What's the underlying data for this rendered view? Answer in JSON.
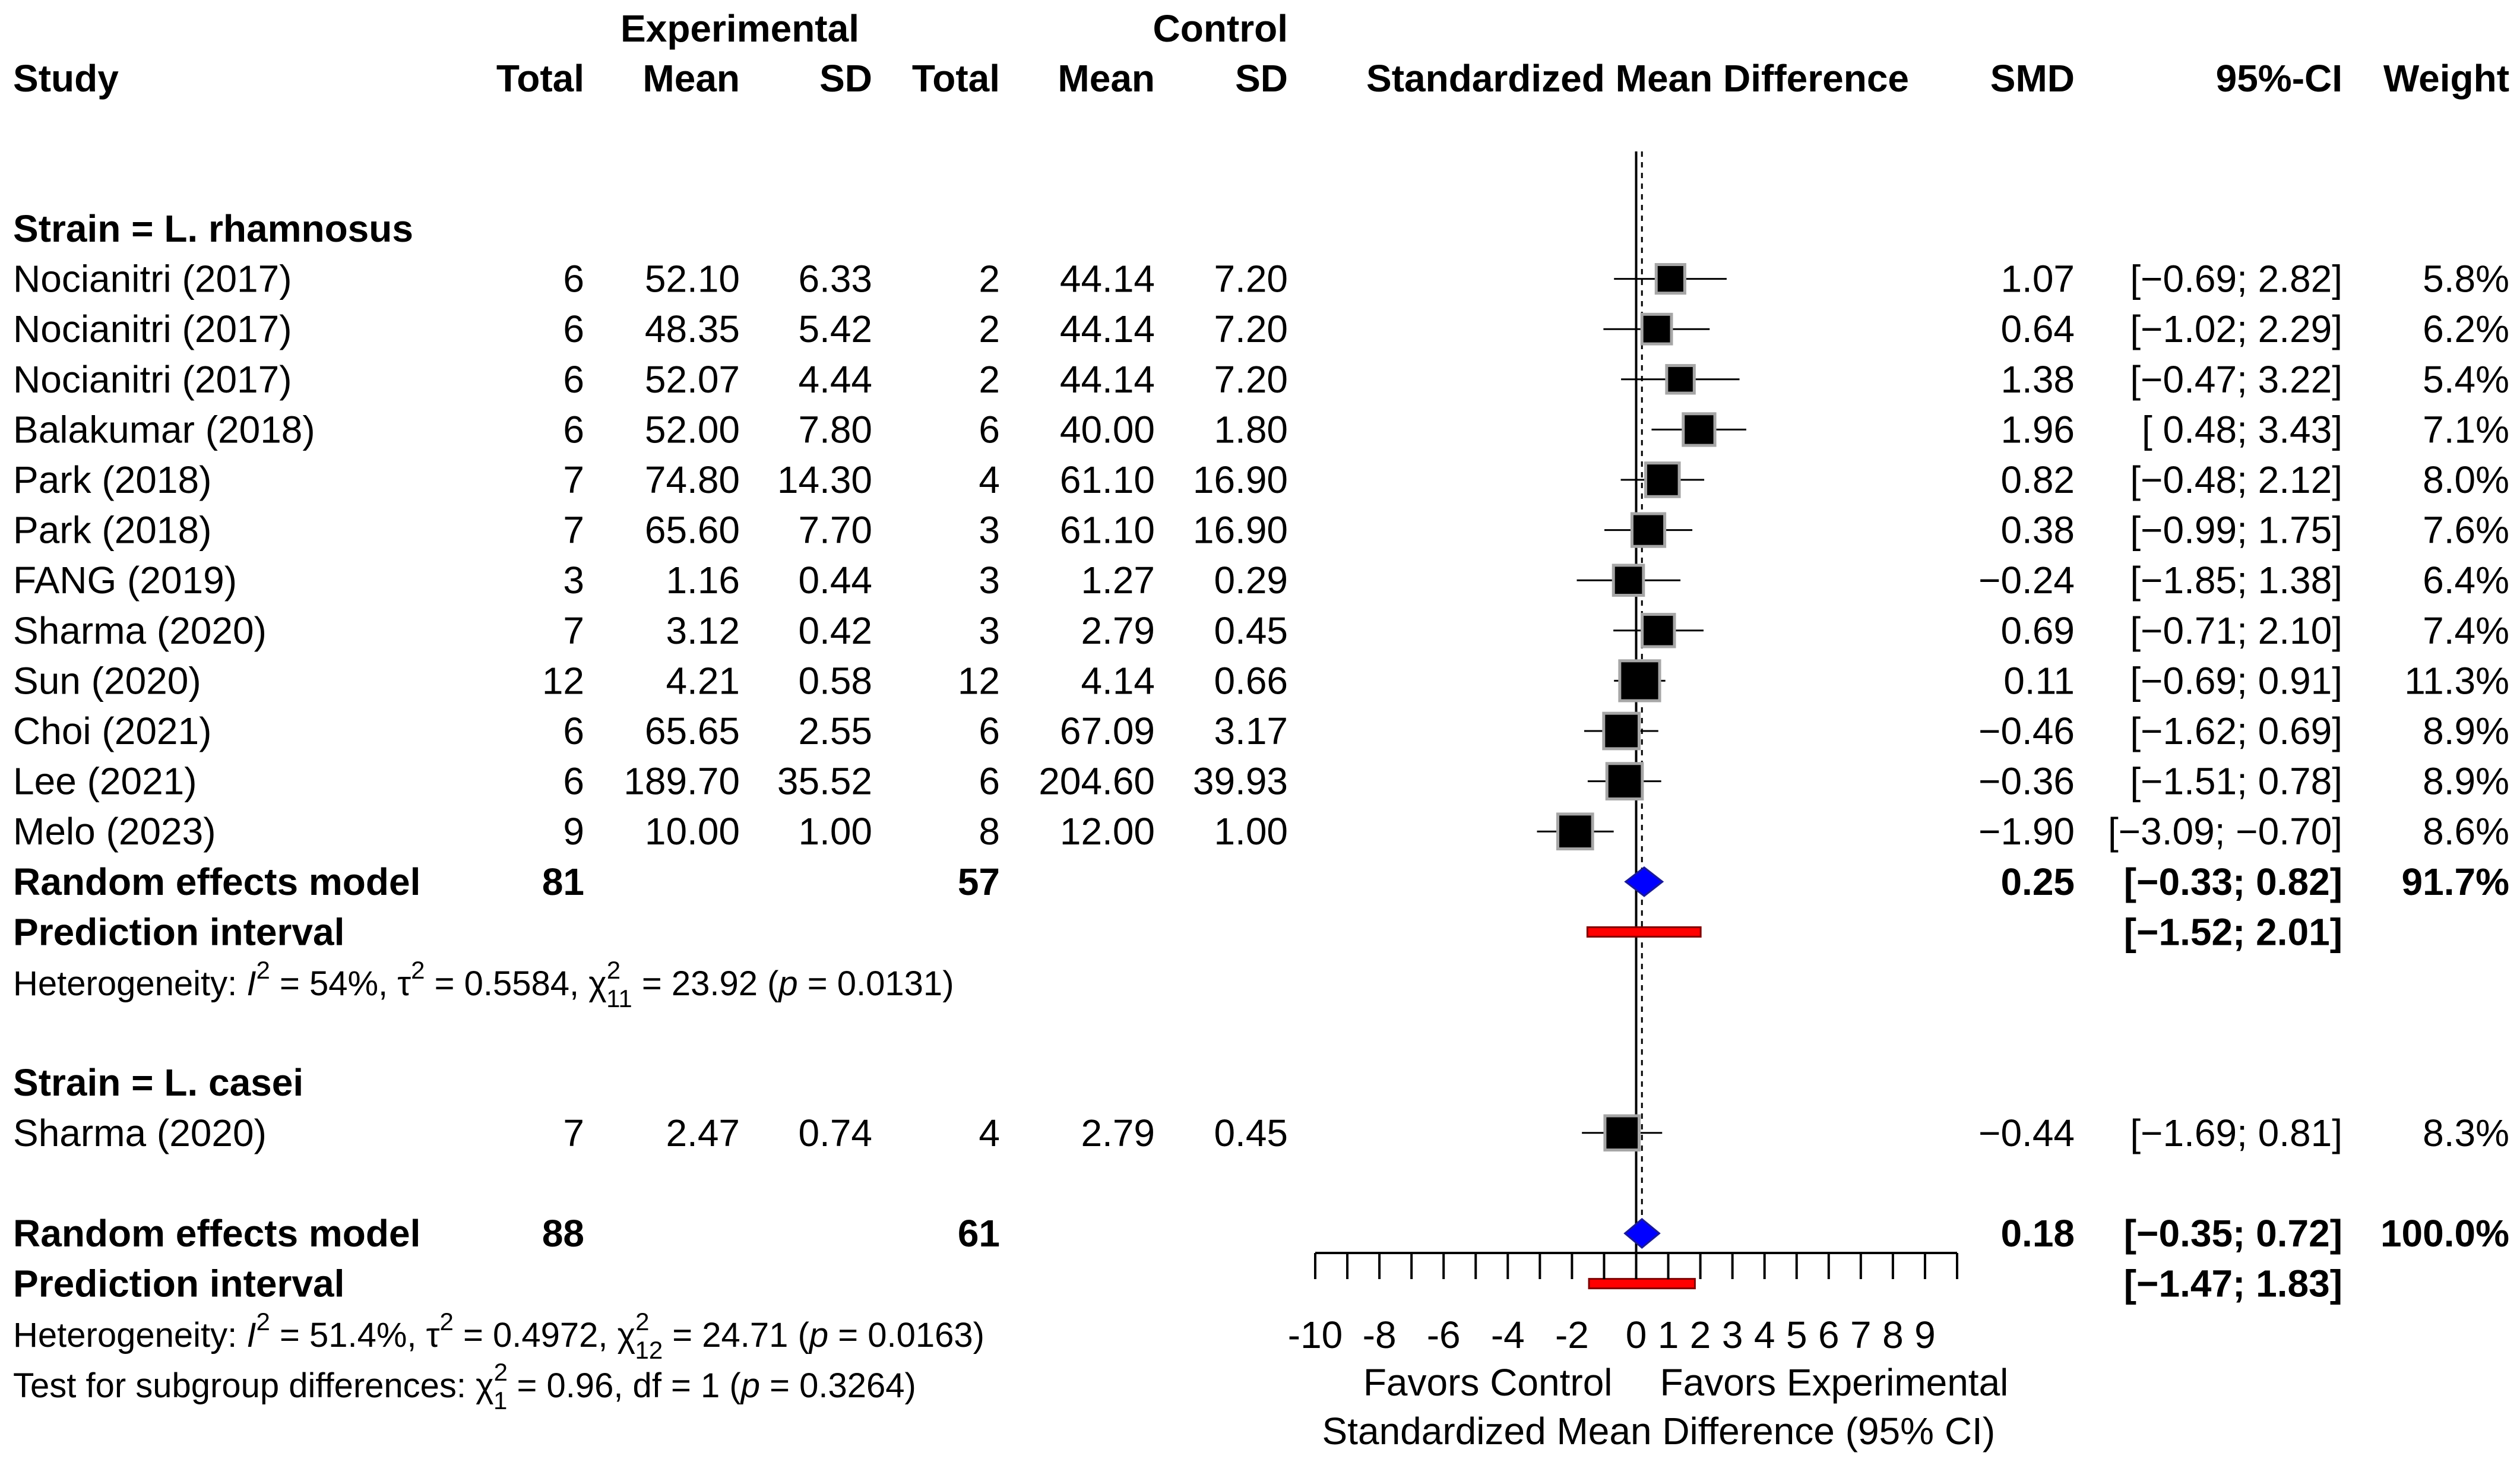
{
  "chart_data": {
    "type": "forest",
    "title": "",
    "columns": {
      "experimental_group": "Experimental",
      "control_group": "Control",
      "study": "Study",
      "total": "Total",
      "mean": "Mean",
      "sd": "SD",
      "plot_header": "Standardized Mean Difference",
      "smd": "SMD",
      "ci": "95%-CI",
      "weight": "Weight"
    },
    "subgroups": [
      {
        "label": "Strain = L. rhamnosus",
        "studies": [
          {
            "study": "Nocianitri (2017)",
            "e_total": "6",
            "e_mean": "52.10",
            "e_sd": "6.33",
            "c_total": "2",
            "c_mean": "44.14",
            "c_sd": "7.20",
            "smd": 1.07,
            "lower": -0.69,
            "upper": 2.82,
            "smd_text": "1.07",
            "ci_text": "[−0.69; 2.82]",
            "weight": 5.8,
            "weight_text": "5.8%"
          },
          {
            "study": "Nocianitri (2017)",
            "e_total": "6",
            "e_mean": "48.35",
            "e_sd": "5.42",
            "c_total": "2",
            "c_mean": "44.14",
            "c_sd": "7.20",
            "smd": 0.64,
            "lower": -1.02,
            "upper": 2.29,
            "smd_text": "0.64",
            "ci_text": "[−1.02; 2.29]",
            "weight": 6.2,
            "weight_text": "6.2%"
          },
          {
            "study": "Nocianitri (2017)",
            "e_total": "6",
            "e_mean": "52.07",
            "e_sd": "4.44",
            "c_total": "2",
            "c_mean": "44.14",
            "c_sd": "7.20",
            "smd": 1.38,
            "lower": -0.47,
            "upper": 3.22,
            "smd_text": "1.38",
            "ci_text": "[−0.47; 3.22]",
            "weight": 5.4,
            "weight_text": "5.4%"
          },
          {
            "study": "Balakumar (2018)",
            "e_total": "6",
            "e_mean": "52.00",
            "e_sd": "7.80",
            "c_total": "6",
            "c_mean": "40.00",
            "c_sd": "1.80",
            "smd": 1.96,
            "lower": 0.48,
            "upper": 3.43,
            "smd_text": "1.96",
            "ci_text": "[ 0.48; 3.43]",
            "weight": 7.1,
            "weight_text": "7.1%"
          },
          {
            "study": "Park (2018)",
            "e_total": "7",
            "e_mean": "74.80",
            "e_sd": "14.30",
            "c_total": "4",
            "c_mean": "61.10",
            "c_sd": "16.90",
            "smd": 0.82,
            "lower": -0.48,
            "upper": 2.12,
            "smd_text": "0.82",
            "ci_text": "[−0.48; 2.12]",
            "weight": 8.0,
            "weight_text": "8.0%"
          },
          {
            "study": "Park (2018)",
            "e_total": "7",
            "e_mean": "65.60",
            "e_sd": "7.70",
            "c_total": "3",
            "c_mean": "61.10",
            "c_sd": "16.90",
            "smd": 0.38,
            "lower": -0.99,
            "upper": 1.75,
            "smd_text": "0.38",
            "ci_text": "[−0.99; 1.75]",
            "weight": 7.6,
            "weight_text": "7.6%"
          },
          {
            "study": "FANG (2019)",
            "e_total": "3",
            "e_mean": "1.16",
            "e_sd": "0.44",
            "c_total": "3",
            "c_mean": "1.27",
            "c_sd": "0.29",
            "smd": -0.24,
            "lower": -1.85,
            "upper": 1.38,
            "smd_text": "−0.24",
            "ci_text": "[−1.85; 1.38]",
            "weight": 6.4,
            "weight_text": "6.4%"
          },
          {
            "study": "Sharma (2020)",
            "e_total": "7",
            "e_mean": "3.12",
            "e_sd": "0.42",
            "c_total": "3",
            "c_mean": "2.79",
            "c_sd": "0.45",
            "smd": 0.69,
            "lower": -0.71,
            "upper": 2.1,
            "smd_text": "0.69",
            "ci_text": "[−0.71; 2.10]",
            "weight": 7.4,
            "weight_text": "7.4%"
          },
          {
            "study": "Sun (2020)",
            "e_total": "12",
            "e_mean": "4.21",
            "e_sd": "0.58",
            "c_total": "12",
            "c_mean": "4.14",
            "c_sd": "0.66",
            "smd": 0.11,
            "lower": -0.69,
            "upper": 0.91,
            "smd_text": "0.11",
            "ci_text": "[−0.69; 0.91]",
            "weight": 11.3,
            "weight_text": "11.3%"
          },
          {
            "study": "Choi (2021)",
            "e_total": "6",
            "e_mean": "65.65",
            "e_sd": "2.55",
            "c_total": "6",
            "c_mean": "67.09",
            "c_sd": "3.17",
            "smd": -0.46,
            "lower": -1.62,
            "upper": 0.69,
            "smd_text": "−0.46",
            "ci_text": "[−1.62; 0.69]",
            "weight": 8.9,
            "weight_text": "8.9%"
          },
          {
            "study": "Lee (2021)",
            "e_total": "6",
            "e_mean": "189.70",
            "e_sd": "35.52",
            "c_total": "6",
            "c_mean": "204.60",
            "c_sd": "39.93",
            "smd": -0.36,
            "lower": -1.51,
            "upper": 0.78,
            "smd_text": "−0.36",
            "ci_text": "[−1.51; 0.78]",
            "weight": 8.9,
            "weight_text": "8.9%"
          },
          {
            "study": "Melo (2023)",
            "e_total": "9",
            "e_mean": "10.00",
            "e_sd": "1.00",
            "c_total": "8",
            "c_mean": "12.00",
            "c_sd": "1.00",
            "smd": -1.9,
            "lower": -3.09,
            "upper": -0.7,
            "smd_text": "−1.90",
            "ci_text": "[−3.09; −0.70]",
            "weight": 8.6,
            "weight_text": "8.6%"
          }
        ],
        "model": {
          "label": "Random effects model",
          "e_total": "81",
          "c_total": "57",
          "smd": 0.25,
          "lower": -0.33,
          "upper": 0.82,
          "smd_text": "0.25",
          "ci_text": "[−0.33; 0.82]",
          "weight_text": "91.7%"
        },
        "prediction": {
          "label": "Prediction interval",
          "lower": -1.52,
          "upper": 2.01,
          "ci_text": "[−1.52; 2.01]"
        },
        "heterogeneity": {
          "lead": "Heterogeneity: ",
          "i2": "54%",
          "tau2": "0.5584",
          "chi_df": "11",
          "chi": "23.92",
          "p": "0.0131"
        }
      },
      {
        "label": "Strain = L. casei",
        "studies": [
          {
            "study": "Sharma (2020)",
            "e_total": "7",
            "e_mean": "2.47",
            "e_sd": "0.74",
            "c_total": "4",
            "c_mean": "2.79",
            "c_sd": "0.45",
            "smd": -0.44,
            "lower": -1.69,
            "upper": 0.81,
            "smd_text": "−0.44",
            "ci_text": "[−1.69; 0.81]",
            "weight": 8.3,
            "weight_text": "8.3%"
          }
        ]
      }
    ],
    "overall": {
      "model": {
        "label": "Random effects model",
        "e_total": "88",
        "c_total": "61",
        "smd": 0.18,
        "lower": -0.35,
        "upper": 0.72,
        "smd_text": "0.18",
        "ci_text": "[−0.35; 0.72]",
        "weight_text": "100.0%"
      },
      "prediction": {
        "label": "Prediction interval",
        "lower": -1.47,
        "upper": 1.83,
        "ci_text": "[−1.47; 1.83]"
      },
      "heterogeneity": {
        "lead": "Heterogeneity: ",
        "i2": "51.4%",
        "tau2": "0.4972",
        "chi_df": "12",
        "chi": "24.71",
        "p": "0.0163"
      },
      "subgroup_test": {
        "lead": "Test for subgroup differences: ",
        "chi_df": "1",
        "chi": "0.96",
        "df": "1",
        "p": "0.3264"
      }
    },
    "axis": {
      "xlim": [
        -10,
        10
      ],
      "ticks": [
        -10,
        -9,
        -8,
        -7,
        -6,
        -5,
        -4,
        -3,
        -2,
        -1,
        0,
        1,
        2,
        3,
        4,
        5,
        6,
        7,
        8,
        9,
        10
      ],
      "tick_labels": [
        {
          "value": -10,
          "text": "-10"
        },
        {
          "value": -8,
          "text": "-8"
        },
        {
          "value": -6,
          "text": "-6"
        },
        {
          "value": -4,
          "text": "-4"
        },
        {
          "value": -2,
          "text": "-2"
        },
        {
          "value": 0,
          "text": "0"
        },
        {
          "value": 1,
          "text": "1"
        },
        {
          "value": 2,
          "text": "2"
        },
        {
          "value": 3,
          "text": "3"
        },
        {
          "value": 4,
          "text": "4"
        },
        {
          "value": 5,
          "text": "5"
        },
        {
          "value": 6,
          "text": "6"
        },
        {
          "value": 7,
          "text": "7"
        },
        {
          "value": 8,
          "text": "8"
        },
        {
          "value": 9,
          "text": "9"
        }
      ],
      "reference_line": 0,
      "overall_reference_line": 0.18,
      "favors_left": "Favors Control",
      "favors_right": "Favors Experimental",
      "xlabel": "Standardized Mean Difference (95% CI)"
    },
    "colors": {
      "square": "#000000",
      "square_border": "#a6a6a6",
      "diamond": "#0000ff",
      "prediction": "#ff0000"
    }
  }
}
